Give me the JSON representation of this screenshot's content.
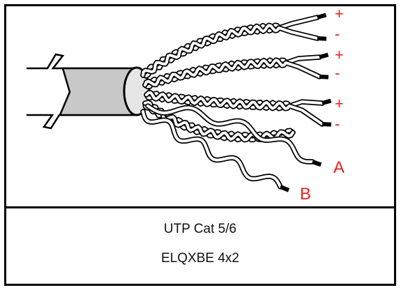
{
  "colors": {
    "frame": "#000000",
    "sheath": "#c8c8c8",
    "wire": "#ffffff",
    "label": "#e8201c",
    "caption": "#111111"
  },
  "pairs": [
    {
      "plus": "+",
      "minus": "-"
    },
    {
      "plus": "+",
      "minus": "-"
    },
    {
      "plus": "+",
      "minus": "-"
    }
  ],
  "labels": {
    "a": "A",
    "b": "B"
  },
  "caption": {
    "line1": "UTP Cat 5/6",
    "line2": "ELQXBE 4x2"
  }
}
